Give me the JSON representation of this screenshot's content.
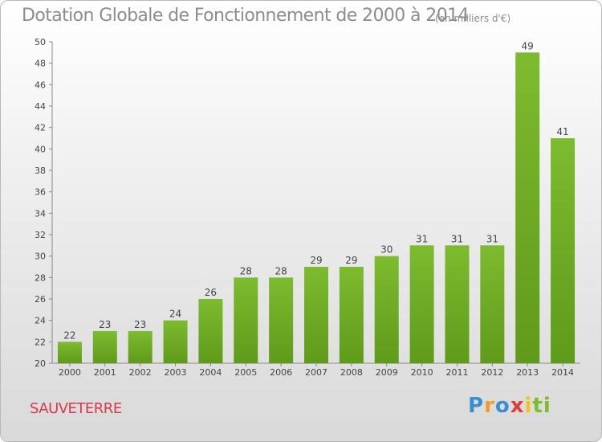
{
  "chart_data": {
    "type": "bar",
    "title": "Dotation Globale de Fonctionnement de 2000 à 2014",
    "subtitle": "(en milliers d'€)",
    "categories": [
      "2000",
      "2001",
      "2002",
      "2003",
      "2004",
      "2005",
      "2006",
      "2007",
      "2008",
      "2009",
      "2010",
      "2011",
      "2012",
      "2013",
      "2014"
    ],
    "values": [
      22,
      23,
      23,
      24,
      26,
      28,
      28,
      29,
      29,
      30,
      31,
      31,
      31,
      49,
      41
    ],
    "ylim": [
      20,
      50
    ],
    "yticks": [
      20,
      22,
      24,
      26,
      28,
      30,
      32,
      34,
      36,
      38,
      40,
      42,
      44,
      46,
      48,
      50
    ],
    "grid": false,
    "bar_color": "#7dbb2f",
    "bar_color_dark": "#5f9a1a"
  },
  "commune": "SAUVETERRE",
  "logo": {
    "letters": [
      "P",
      "r",
      "o",
      "x",
      "i",
      "t",
      "i"
    ],
    "colors": [
      "#3a8fd0",
      "#f39c1f",
      "#3a8fd0",
      "#e23b3b",
      "#f3c21f",
      "#7dbb2f",
      "#7dbb2f"
    ]
  }
}
